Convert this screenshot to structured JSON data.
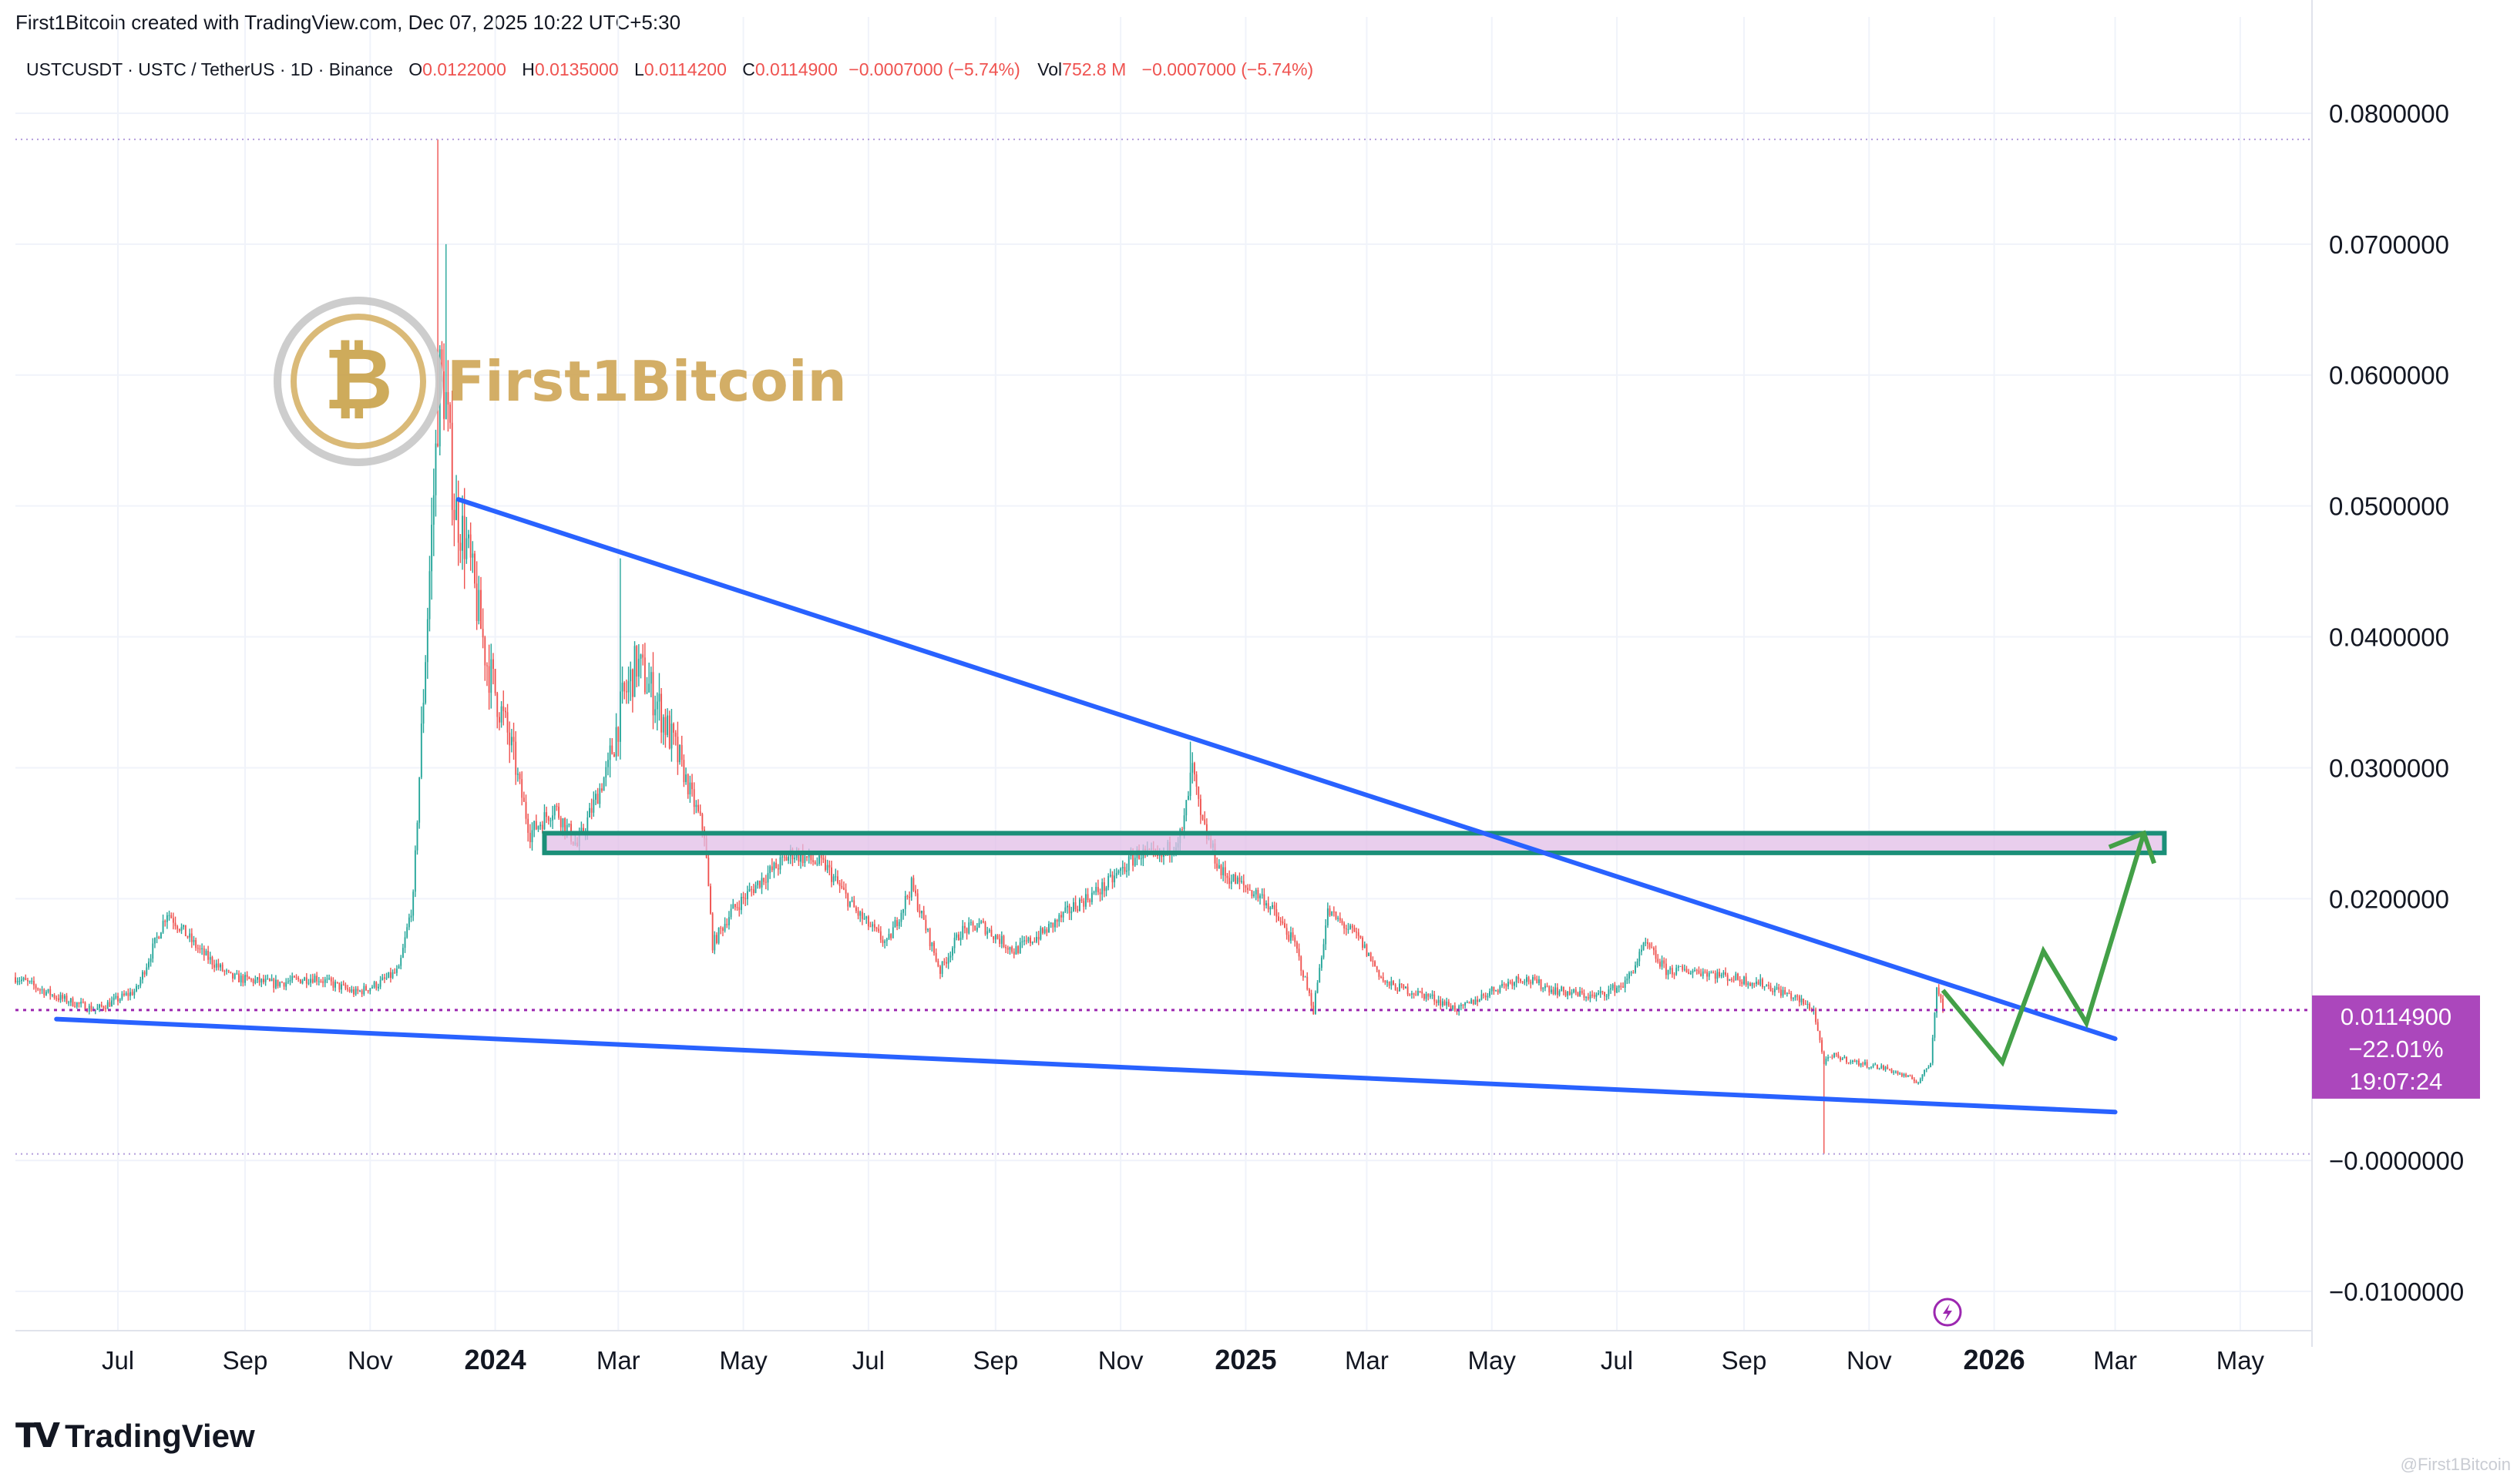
{
  "header": {
    "credit": "First1Bitcoin created with TradingView.com, Dec 07, 2025 10:22 UTC+5:30"
  },
  "legend": {
    "symbol": "USTCUSDT · USTC / TetherUS · 1D · Binance",
    "o_label": "O",
    "o_value": "0.0122000",
    "h_label": "H",
    "h_value": "0.0135000",
    "l_label": "L",
    "l_value": "0.0114200",
    "c_label": "C",
    "c_value": "0.0114900",
    "change": "−0.0007000 (−5.74%)",
    "vol_label": "Vol",
    "vol_value": "752.8 M",
    "vol_change": "−0.0007000 (−5.74%)"
  },
  "watermark": {
    "text": "First1Bitcoin"
  },
  "price_tag": {
    "price": "0.0114900",
    "change": "−22.01%",
    "countdown": "19:07:24"
  },
  "footer": {
    "brand": "TradingView",
    "corner_watermark": "@First1Bitcoin"
  },
  "colors": {
    "up": "#26a69a",
    "down": "#ef5350",
    "trendline": "#2962ff",
    "zone_fill": "#e1bee7",
    "zone_border": "#1b8f78",
    "projection": "#43a047",
    "price_tag": "#ab47bc",
    "brand_gold": "#c9a24a"
  },
  "chart_data": {
    "type": "candlestick",
    "symbol": "USTCUSDT",
    "interval": "1D",
    "exchange": "Binance",
    "y_axis": {
      "ticks": [
        "0.0800000",
        "0.0700000",
        "0.0600000",
        "0.0500000",
        "0.0400000",
        "0.0300000",
        "0.0200000",
        "−0.0000000",
        "−0.0100000"
      ],
      "tick_values": [
        0.08,
        0.07,
        0.06,
        0.05,
        0.04,
        0.03,
        0.02,
        0.0,
        -0.01
      ],
      "range": [
        -0.013,
        0.085
      ],
      "side": "right"
    },
    "x_axis": {
      "ticks": [
        "Jul",
        "Sep",
        "Nov",
        "2024",
        "Mar",
        "May",
        "Jul",
        "Sep",
        "Nov",
        "2025",
        "Mar",
        "May",
        "Jul",
        "Sep",
        "Nov",
        "2026",
        "Mar",
        "May"
      ],
      "tick_dates": [
        "2023-07-01",
        "2023-09-01",
        "2023-11-01",
        "2024-01-01",
        "2024-03-01",
        "2024-05-01",
        "2024-07-01",
        "2024-09-01",
        "2024-11-01",
        "2025-01-01",
        "2025-03-01",
        "2025-05-01",
        "2025-07-01",
        "2025-09-01",
        "2025-11-01",
        "2026-01-01",
        "2026-03-01",
        "2026-05-01"
      ],
      "bold_ticks": [
        "2024",
        "2025",
        "2026"
      ],
      "range": [
        "2023-05-12",
        "2026-06-05"
      ]
    },
    "price_path": [
      [
        "2023-05-12",
        0.014
      ],
      [
        "2023-06-01",
        0.0125
      ],
      [
        "2023-06-20",
        0.0115
      ],
      [
        "2023-07-10",
        0.013
      ],
      [
        "2023-07-25",
        0.019
      ],
      [
        "2023-08-10",
        0.016
      ],
      [
        "2023-08-25",
        0.014
      ],
      [
        "2023-09-15",
        0.0135
      ],
      [
        "2023-10-05",
        0.014
      ],
      [
        "2023-10-25",
        0.0128
      ],
      [
        "2023-11-05",
        0.0135
      ],
      [
        "2023-11-15",
        0.0145
      ],
      [
        "2023-11-22",
        0.02
      ],
      [
        "2023-11-30",
        0.045
      ],
      [
        "2023-12-05",
        0.06
      ],
      [
        "2023-12-08",
        0.058
      ],
      [
        "2023-12-12",
        0.05
      ],
      [
        "2023-12-18",
        0.047
      ],
      [
        "2023-12-28",
        0.038
      ],
      [
        "2024-01-08",
        0.032
      ],
      [
        "2024-01-18",
        0.025
      ],
      [
        "2024-01-30",
        0.027
      ],
      [
        "2024-02-10",
        0.024
      ],
      [
        "2024-02-25",
        0.03
      ],
      [
        "2024-03-03",
        0.035
      ],
      [
        "2024-03-10",
        0.038
      ],
      [
        "2024-03-20",
        0.035
      ],
      [
        "2024-04-01",
        0.03
      ],
      [
        "2024-04-12",
        0.025
      ],
      [
        "2024-04-16",
        0.0165
      ],
      [
        "2024-04-25",
        0.019
      ],
      [
        "2024-05-10",
        0.0215
      ],
      [
        "2024-05-25",
        0.0235
      ],
      [
        "2024-06-10",
        0.0225
      ],
      [
        "2024-06-25",
        0.019
      ],
      [
        "2024-07-10",
        0.0165
      ],
      [
        "2024-07-22",
        0.021
      ],
      [
        "2024-08-05",
        0.0145
      ],
      [
        "2024-08-15",
        0.0175
      ],
      [
        "2024-08-25",
        0.018
      ],
      [
        "2024-09-10",
        0.016
      ],
      [
        "2024-09-25",
        0.0175
      ],
      [
        "2024-10-10",
        0.0195
      ],
      [
        "2024-10-25",
        0.021
      ],
      [
        "2024-11-10",
        0.0235
      ],
      [
        "2024-11-20",
        0.023
      ],
      [
        "2024-12-01",
        0.025
      ],
      [
        "2024-12-06",
        0.03
      ],
      [
        "2024-12-10",
        0.026
      ],
      [
        "2024-12-20",
        0.022
      ],
      [
        "2025-01-10",
        0.02
      ],
      [
        "2025-01-25",
        0.0165
      ],
      [
        "2025-02-03",
        0.0115
      ],
      [
        "2025-02-10",
        0.019
      ],
      [
        "2025-02-25",
        0.017
      ],
      [
        "2025-03-10",
        0.0135
      ],
      [
        "2025-04-01",
        0.0125
      ],
      [
        "2025-04-15",
        0.0115
      ],
      [
        "2025-05-01",
        0.013
      ],
      [
        "2025-05-15",
        0.014
      ],
      [
        "2025-06-01",
        0.013
      ],
      [
        "2025-06-20",
        0.0125
      ],
      [
        "2025-07-05",
        0.0135
      ],
      [
        "2025-07-15",
        0.0165
      ],
      [
        "2025-07-25",
        0.0145
      ],
      [
        "2025-08-10",
        0.0145
      ],
      [
        "2025-08-25",
        0.014
      ],
      [
        "2025-09-10",
        0.0135
      ],
      [
        "2025-09-25",
        0.0125
      ],
      [
        "2025-10-05",
        0.0115
      ],
      [
        "2025-10-10",
        0.0075
      ],
      [
        "2025-10-15",
        0.008
      ],
      [
        "2025-10-25",
        0.0075
      ],
      [
        "2025-11-10",
        0.007
      ],
      [
        "2025-11-25",
        0.006
      ],
      [
        "2025-12-01",
        0.0075
      ],
      [
        "2025-12-04",
        0.0135
      ],
      [
        "2025-12-07",
        0.0115
      ]
    ],
    "wick_extremes": [
      [
        "2023-12-04",
        0.078
      ],
      [
        "2023-12-08",
        0.07
      ],
      [
        "2024-03-02",
        0.046
      ],
      [
        "2024-12-05",
        0.032
      ],
      [
        "2025-10-10",
        0.0005
      ]
    ],
    "horizontal_lines": [
      {
        "role": "high",
        "value": 0.078
      },
      {
        "role": "current",
        "value": 0.01149
      },
      {
        "role": "low",
        "value": 0.0005
      }
    ],
    "trendlines": [
      {
        "role": "descending-resistance",
        "from": [
          "2023-12-14",
          0.0505
        ],
        "to": [
          "2026-03-01",
          0.0093
        ]
      },
      {
        "role": "support",
        "from": [
          "2023-06-01",
          0.0108
        ],
        "to": [
          "2026-03-01",
          0.0037
        ]
      }
    ],
    "zone": {
      "role": "resistance-zone",
      "from": "2024-01-25",
      "to": "2026-03-25",
      "top": 0.025,
      "bottom": 0.0235
    },
    "projection": [
      [
        "2025-12-07",
        0.013
      ],
      [
        "2026-01-05",
        0.0075
      ],
      [
        "2026-01-25",
        0.016
      ],
      [
        "2026-02-15",
        0.0105
      ],
      [
        "2026-03-15",
        0.025
      ],
      [
        "2026-03-20",
        0.0227
      ]
    ],
    "price_tag": {
      "value": 0.01149,
      "change_pct": -22.01,
      "countdown": "19:07:24"
    }
  }
}
